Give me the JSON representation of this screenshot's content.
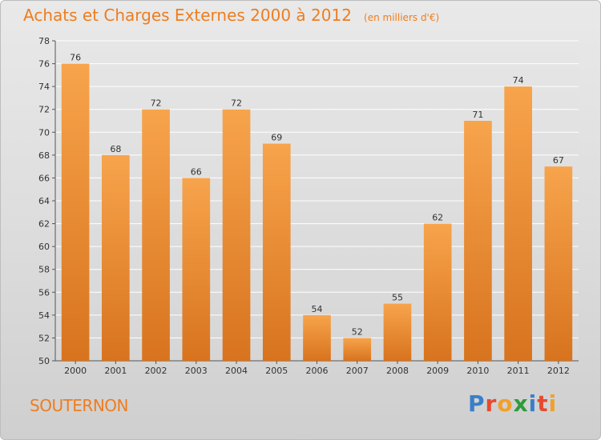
{
  "page": {
    "title": "Achats et Charges Externes 2000 à 2012",
    "unit": "(en milliers d'€)",
    "commune": "SOUTERNON",
    "brand": "Proxiti",
    "brand_letters": [
      {
        "char": "P",
        "color": "#3a7fc8"
      },
      {
        "char": "r",
        "color": "#e64a2e"
      },
      {
        "char": "o",
        "color": "#f2a02a"
      },
      {
        "char": "x",
        "color": "#2f9b3c"
      },
      {
        "char": "i",
        "color": "#3a7fc8"
      },
      {
        "char": "t",
        "color": "#e64a2e"
      },
      {
        "char": "i",
        "color": "#f2a02a"
      }
    ]
  },
  "chart_data": {
    "type": "bar",
    "title": "Achats et Charges Externes 2000 à 2012",
    "subtitle": "(en milliers d'€)",
    "categories": [
      "2000",
      "2001",
      "2002",
      "2003",
      "2004",
      "2005",
      "2006",
      "2007",
      "2008",
      "2009",
      "2010",
      "2011",
      "2012"
    ],
    "values": [
      76,
      68,
      72,
      66,
      72,
      69,
      54,
      52,
      55,
      62,
      71,
      74,
      67
    ],
    "ylim": [
      50,
      78
    ],
    "yticks": [
      50,
      52,
      54,
      56,
      58,
      60,
      62,
      64,
      66,
      68,
      70,
      72,
      74,
      76,
      78
    ],
    "grid": true,
    "show_value_labels": true,
    "colors": {
      "bar_top": "#f7a44c",
      "bar_bottom": "#d8731e",
      "grid": "#ffffff",
      "accent": "#ee7d1e"
    }
  }
}
